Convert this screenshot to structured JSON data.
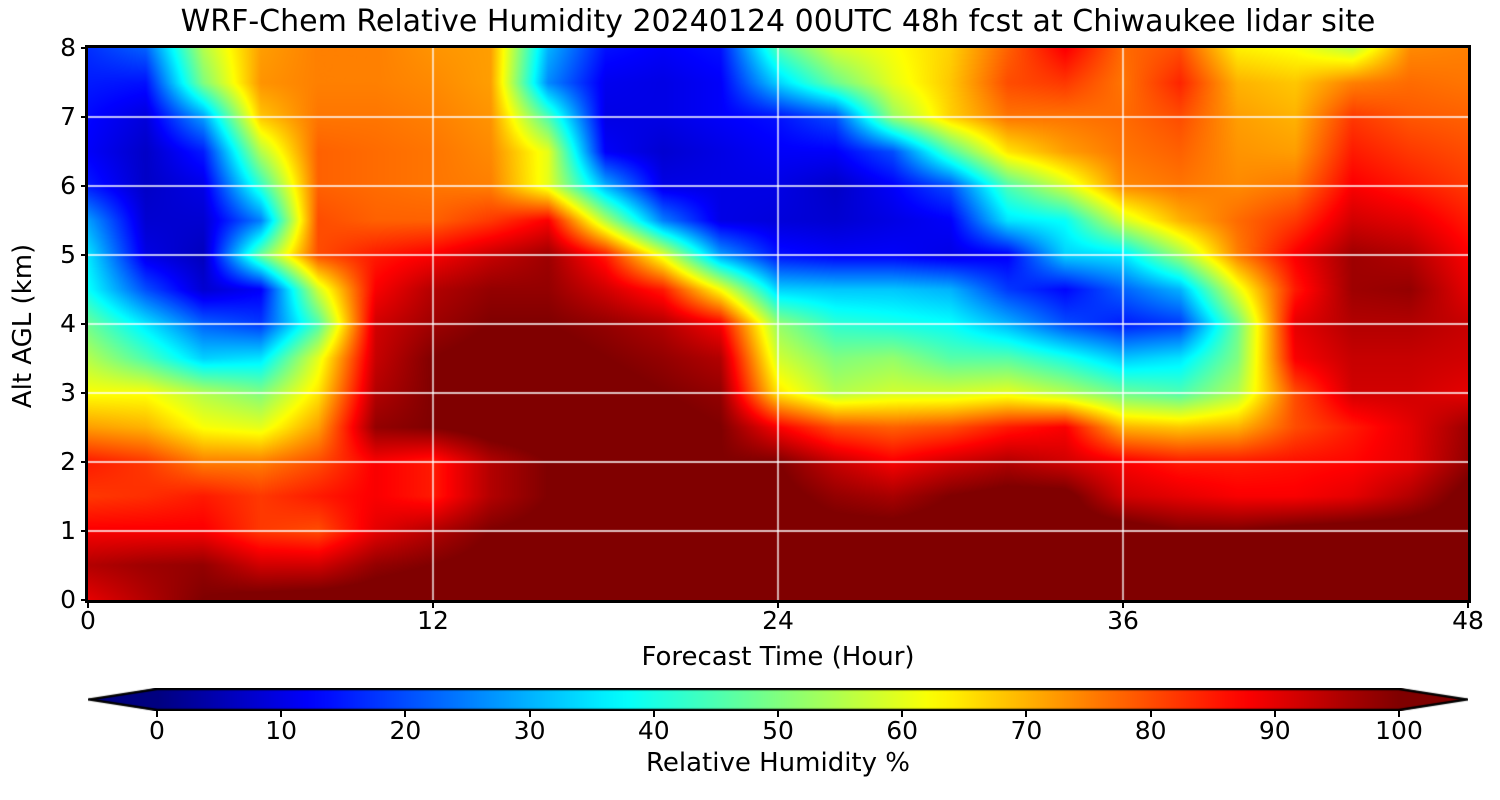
{
  "figure": {
    "background": "#ffffff",
    "colors": {
      "spine": "#000000",
      "grid": "rgba(255,255,255,0.75)",
      "text": "#000000"
    }
  },
  "chart_data": {
    "type": "heatmap",
    "title": "WRF-Chem Relative Humidity 20240124 00UTC 48h fcst at Chiwaukee lidar site",
    "xlabel": "Forecast Time (Hour)",
    "ylabel": "Alt AGL (km)",
    "xlim": [
      0,
      48
    ],
    "ylim": [
      0,
      8
    ],
    "x_ticks": [
      0,
      12,
      24,
      36,
      48
    ],
    "y_ticks": [
      0,
      1,
      2,
      3,
      4,
      5,
      6,
      7,
      8
    ],
    "x_gridlines": [
      12,
      24,
      36
    ],
    "y_gridlines": [
      1,
      2,
      3,
      4,
      5,
      6,
      7
    ],
    "grid_on": true,
    "colormap": "jet",
    "legend_position": "none",
    "x": [
      0,
      2,
      4,
      6,
      8,
      10,
      12,
      14,
      16,
      18,
      20,
      22,
      24,
      26,
      28,
      30,
      32,
      34,
      36,
      38,
      40,
      42,
      44,
      46,
      48
    ],
    "z": [
      8,
      7.5,
      7,
      6.5,
      6,
      5.5,
      5,
      4.5,
      4,
      3.5,
      3,
      2.5,
      2,
      1.5,
      1,
      0.5,
      0
    ],
    "rh": [
      [
        17,
        22,
        55,
        72,
        75,
        75,
        73,
        72,
        30,
        14,
        12,
        14,
        45,
        58,
        62,
        67,
        78,
        88,
        77,
        80,
        64,
        62,
        56,
        74,
        75
      ],
      [
        15,
        14,
        50,
        73,
        75,
        75,
        74,
        72,
        26,
        11,
        10,
        12,
        33,
        48,
        60,
        68,
        80,
        82,
        76,
        84,
        70,
        68,
        75,
        77,
        76
      ],
      [
        13,
        9,
        28,
        68,
        76,
        76,
        75,
        73,
        45,
        10,
        10,
        12,
        14,
        20,
        52,
        67,
        76,
        76,
        77,
        80,
        72,
        70,
        82,
        79,
        78
      ],
      [
        12,
        7,
        15,
        55,
        78,
        77,
        76,
        74,
        60,
        12,
        8,
        10,
        12,
        12,
        20,
        45,
        65,
        72,
        76,
        78,
        73,
        72,
        85,
        82,
        80
      ],
      [
        15,
        7,
        10,
        42,
        78,
        77,
        76,
        75,
        60,
        30,
        10,
        10,
        10,
        7,
        12,
        20,
        45,
        58,
        74,
        76,
        74,
        76,
        88,
        85,
        82
      ],
      [
        28,
        8,
        8,
        25,
        80,
        78,
        78,
        82,
        88,
        55,
        25,
        10,
        9,
        8,
        10,
        12,
        35,
        38,
        58,
        70,
        77,
        82,
        92,
        90,
        85
      ],
      [
        35,
        10,
        6,
        48,
        80,
        85,
        88,
        93,
        97,
        85,
        60,
        28,
        14,
        12,
        12,
        10,
        12,
        33,
        35,
        53,
        75,
        88,
        97,
        95,
        88
      ],
      [
        38,
        20,
        8,
        12,
        58,
        88,
        95,
        98,
        98,
        92,
        85,
        62,
        33,
        32,
        32,
        30,
        18,
        13,
        22,
        30,
        60,
        85,
        97,
        98,
        90
      ],
      [
        48,
        35,
        22,
        18,
        45,
        92,
        97,
        100,
        100,
        98,
        95,
        88,
        52,
        42,
        40,
        38,
        30,
        20,
        15,
        18,
        48,
        90,
        95,
        95,
        93
      ],
      [
        55,
        45,
        33,
        35,
        60,
        93,
        100,
        102,
        102,
        100,
        98,
        95,
        58,
        50,
        52,
        46,
        46,
        40,
        32,
        35,
        50,
        88,
        93,
        93,
        92
      ],
      [
        62,
        62,
        55,
        50,
        65,
        95,
        100,
        103,
        103,
        102,
        100,
        98,
        65,
        55,
        58,
        58,
        60,
        55,
        48,
        45,
        55,
        80,
        92,
        92,
        90
      ],
      [
        72,
        70,
        62,
        60,
        72,
        98,
        100,
        103,
        104,
        103,
        102,
        100,
        88,
        80,
        78,
        80,
        85,
        88,
        70,
        68,
        70,
        80,
        85,
        90,
        97
      ],
      [
        85,
        82,
        75,
        75,
        80,
        88,
        85,
        95,
        100,
        100,
        100,
        100,
        100,
        93,
        88,
        92,
        95,
        92,
        88,
        85,
        85,
        86,
        87,
        90,
        98
      ],
      [
        82,
        83,
        85,
        82,
        85,
        88,
        85,
        95,
        100,
        102,
        102,
        102,
        102,
        98,
        96,
        100,
        102,
        102,
        92,
        90,
        88,
        88,
        90,
        95,
        102
      ],
      [
        88,
        88,
        88,
        82,
        80,
        90,
        95,
        100,
        102,
        103,
        103,
        103,
        103,
        102,
        102,
        103,
        103,
        103,
        103,
        100,
        100,
        102,
        103,
        103,
        103
      ],
      [
        95,
        97,
        98,
        92,
        92,
        98,
        100,
        102,
        103,
        104,
        104,
        103,
        104,
        103,
        100,
        100,
        102,
        103,
        103,
        101,
        101,
        102,
        103,
        104,
        104
      ],
      [
        90,
        95,
        100,
        102,
        103,
        103,
        104,
        104,
        104,
        104,
        104,
        104,
        104,
        104,
        104,
        104,
        104,
        104,
        104,
        104,
        104,
        104,
        104,
        104,
        104
      ]
    ],
    "colorbar": {
      "label": "Relative Humidity %",
      "ticks": [
        0,
        10,
        20,
        30,
        40,
        50,
        60,
        70,
        80,
        90,
        100
      ],
      "vmin": 0,
      "vmax": 100,
      "extend": "both"
    }
  }
}
